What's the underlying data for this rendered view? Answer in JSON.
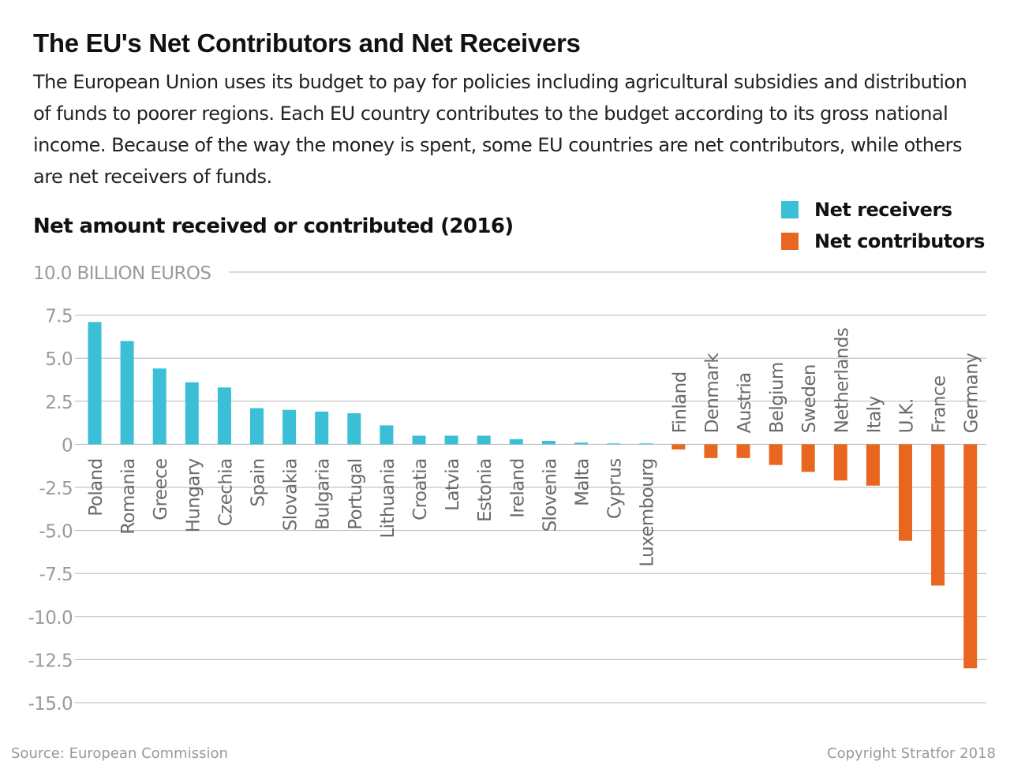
{
  "title": "The EU's Net Contributors and Net Receivers",
  "subtitle": "The European Union uses its budget to pay for policies including agricultural subsidies and distribution of funds to poorer regions. Each EU country contributes to the budget according to its gross national income. Because of the way the money is spent, some EU countries are net contributors, while others are net receivers of funds.",
  "chart_heading": "Net amount received or contributed (2016)",
  "legend": [
    {
      "label": "Net receivers",
      "color": "#3bbfd6"
    },
    {
      "label": "Net contributors",
      "color": "#e8661f"
    }
  ],
  "source": "Source: European Commission",
  "copyright": "Copyright Stratfor 2018",
  "chart_data": {
    "type": "bar",
    "ylim": [
      -15,
      10
    ],
    "unit_label": "BILLION EUROS",
    "y_ticks": [
      {
        "value": 10,
        "label": "10.0"
      },
      {
        "value": 7.5,
        "label": "7.5"
      },
      {
        "value": 5,
        "label": "5.0"
      },
      {
        "value": 2.5,
        "label": "2.5"
      },
      {
        "value": 0,
        "label": "0"
      },
      {
        "value": -2.5,
        "label": "-2.5"
      },
      {
        "value": -5,
        "label": "-5.0"
      },
      {
        "value": -7.5,
        "label": "-7.5"
      },
      {
        "value": -10,
        "label": "-10.0"
      },
      {
        "value": -12.5,
        "label": "-12.5"
      },
      {
        "value": -15,
        "label": "-15.0"
      }
    ],
    "grid": true,
    "legend_position": "top-right",
    "categories": [
      "Poland",
      "Romania",
      "Greece",
      "Hungary",
      "Czechia",
      "Spain",
      "Slovakia",
      "Bulgaria",
      "Portugal",
      "Lithuania",
      "Croatia",
      "Latvia",
      "Estonia",
      "Ireland",
      "Slovenia",
      "Malta",
      "Cyprus",
      "Luxembourg",
      "Finland",
      "Denmark",
      "Austria",
      "Belgium",
      "Sweden",
      "Netherlands",
      "Italy",
      "U.K.",
      "France",
      "Germany"
    ],
    "values": [
      7.1,
      6.0,
      4.4,
      3.6,
      3.3,
      2.1,
      2.0,
      1.9,
      1.8,
      1.1,
      0.5,
      0.5,
      0.5,
      0.3,
      0.2,
      0.1,
      0.05,
      0.05,
      -0.3,
      -0.8,
      -0.8,
      -1.2,
      -1.6,
      -2.1,
      -2.4,
      -5.6,
      -8.2,
      -13.0
    ],
    "colors": {
      "positive": "#3bbfd6",
      "negative": "#e8661f"
    }
  }
}
